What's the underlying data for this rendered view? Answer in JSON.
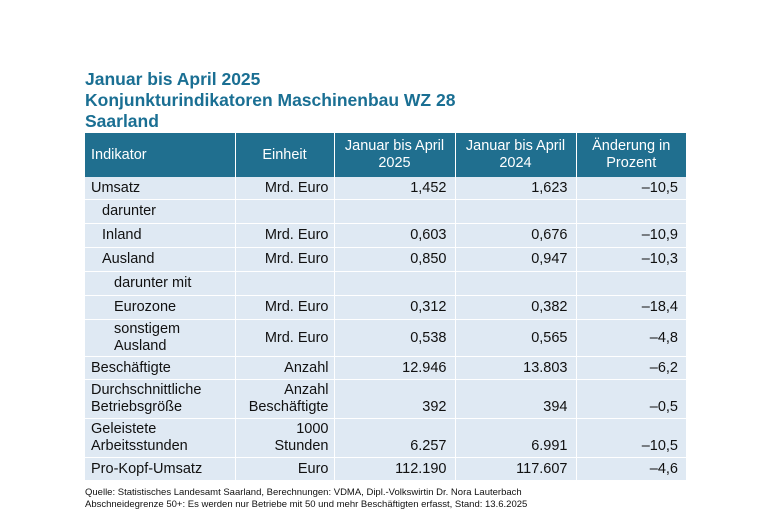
{
  "title": {
    "line1": "Januar bis April 2025",
    "line2": "Konjunkturindikatoren Maschinenbau WZ 28",
    "line3": "Saarland"
  },
  "table": {
    "headers": {
      "indicator": "Indikator",
      "unit": "Einheit",
      "col2025_line1": "Januar bis April",
      "col2025_line2": "2025",
      "col2024_line1": "Januar bis April",
      "col2024_line2": "2024",
      "change_line1": "Änderung in",
      "change_line2": "Prozent"
    },
    "rows": [
      {
        "label": "Umsatz",
        "unit": "Mrd. Euro",
        "v2025": "1,452",
        "v2024": "1,623",
        "change": "–10,5"
      },
      {
        "label": "darunter",
        "unit": "",
        "v2025": "",
        "v2024": "",
        "change": ""
      },
      {
        "label": "Inland",
        "unit": "Mrd. Euro",
        "v2025": "0,603",
        "v2024": "0,676",
        "change": "–10,9"
      },
      {
        "label": "Ausland",
        "unit": "Mrd. Euro",
        "v2025": "0,850",
        "v2024": "0,947",
        "change": "–10,3"
      },
      {
        "label": "darunter mit",
        "unit": "",
        "v2025": "",
        "v2024": "",
        "change": ""
      },
      {
        "label": "Eurozone",
        "unit": "Mrd. Euro",
        "v2025": "0,312",
        "v2024": "0,382",
        "change": "–18,4"
      },
      {
        "label_line1": "sonstigem",
        "label_line2": "Ausland",
        "unit": "Mrd. Euro",
        "v2025": "0,538",
        "v2024": "0,565",
        "change": "–4,8"
      },
      {
        "label": "Beschäftigte",
        "unit": "Anzahl",
        "v2025": "12.946",
        "v2024": "13.803",
        "change": "–6,2"
      },
      {
        "label_line1": "Durchschnittliche",
        "label_line2": "Betriebsgröße",
        "unit_line1": "Anzahl",
        "unit_line2": "Beschäftigte",
        "v2025": "392",
        "v2024": "394",
        "change": "–0,5"
      },
      {
        "label_line1": "Geleistete",
        "label_line2": "Arbeitsstunden",
        "unit_line1": "1000",
        "unit_line2": "Stunden",
        "v2025": "6.257",
        "v2024": "6.991",
        "change": "–10,5"
      },
      {
        "label": "Pro-Kopf-Umsatz",
        "unit": "Euro",
        "v2025": "112.190",
        "v2024": "117.607",
        "change": "–4,6"
      }
    ]
  },
  "footnote": {
    "line1": "Quelle: Statistisches Landesamt Saarland, Berechnungen: VDMA, Dipl.-Volkswirtin Dr. Nora Lauterbach",
    "line2": "Abschneidegrenze 50+: Es werden nur Betriebe mit 50 und mehr Beschäftigten erfasst, Stand: 13.6.2025"
  },
  "colors": {
    "title": "#1a6f93",
    "header_bg": "#206f8f",
    "row_bg": "#dfe9f3"
  }
}
